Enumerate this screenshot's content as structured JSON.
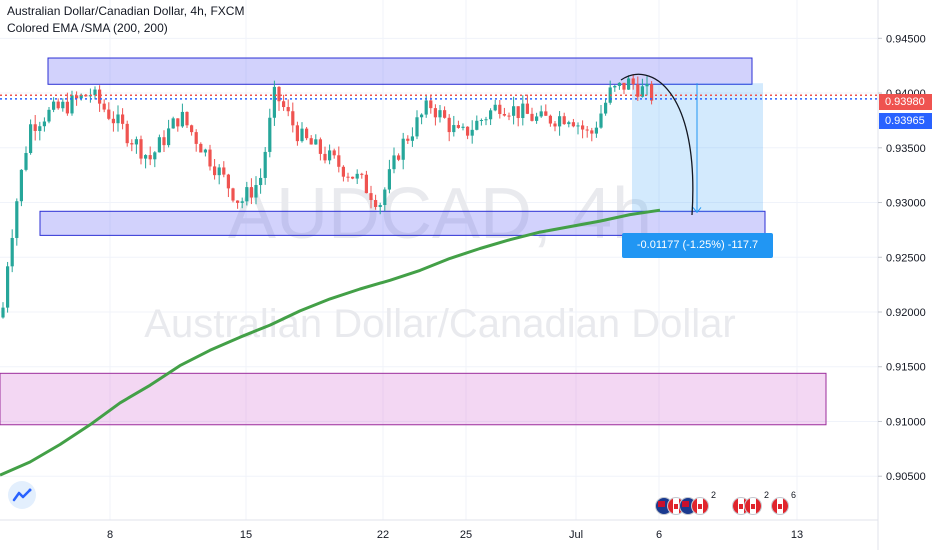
{
  "legend": {
    "title": "Australian Dollar/Canadian Dollar, 4h, FXCM",
    "indicator": "Colored EMA /SMA (200, 200)"
  },
  "watermark": {
    "symbol": "AUDCAD, 4h",
    "name": "Australian Dollar/Canadian Dollar"
  },
  "measure_label": "-0.01177 (-1.25%) -117.7",
  "price_tags": {
    "last": "0.93980",
    "bid": "0.93965"
  },
  "events": [
    {
      "count": "2"
    },
    {
      "count": "2"
    },
    {
      "count": "6"
    }
  ],
  "colors": {
    "up": "#26a69a",
    "down": "#ef5350",
    "ma": "#43a047",
    "zone_blue": "#5d5ff5",
    "zone_pink": "#d05fd0",
    "accent": "#2196f3",
    "last_price": "#ef5350",
    "bid_price": "#2962ff"
  },
  "chart_data": {
    "type": "candlestick",
    "y_ticks": [
      "0.94500",
      "0.94000",
      "0.93500",
      "0.93000",
      "0.92500",
      "0.92000",
      "0.91500",
      "0.91000",
      "0.90500"
    ],
    "x_ticks": [
      "8",
      "15",
      "22",
      "25",
      "Jul",
      "6",
      "13"
    ],
    "ylim": [
      0.901,
      0.9485
    ],
    "last_price": 0.9398,
    "bid_price": 0.93965,
    "ma_series": [
      {
        "x": 0,
        "y": 0.9051
      },
      {
        "x": 30,
        "y": 0.9063
      },
      {
        "x": 60,
        "y": 0.9079
      },
      {
        "x": 90,
        "y": 0.9097
      },
      {
        "x": 120,
        "y": 0.9117
      },
      {
        "x": 150,
        "y": 0.9133
      },
      {
        "x": 180,
        "y": 0.9151
      },
      {
        "x": 210,
        "y": 0.9165
      },
      {
        "x": 240,
        "y": 0.9177
      },
      {
        "x": 270,
        "y": 0.9188
      },
      {
        "x": 300,
        "y": 0.9201
      },
      {
        "x": 330,
        "y": 0.9212
      },
      {
        "x": 360,
        "y": 0.9221
      },
      {
        "x": 390,
        "y": 0.9229
      },
      {
        "x": 420,
        "y": 0.9238
      },
      {
        "x": 450,
        "y": 0.9249
      },
      {
        "x": 480,
        "y": 0.9258
      },
      {
        "x": 510,
        "y": 0.9266
      },
      {
        "x": 540,
        "y": 0.9273
      },
      {
        "x": 570,
        "y": 0.9278
      },
      {
        "x": 600,
        "y": 0.9283
      },
      {
        "x": 630,
        "y": 0.9289
      },
      {
        "x": 660,
        "y": 0.9293
      }
    ],
    "zones": [
      {
        "top": 0.9432,
        "bottom": 0.9408
      },
      {
        "top": 0.9292,
        "bottom": 0.927
      },
      {
        "top": 0.9144,
        "bottom": 0.9097
      }
    ],
    "measure": {
      "from": 0.9409,
      "to": 0.9291
    }
  }
}
